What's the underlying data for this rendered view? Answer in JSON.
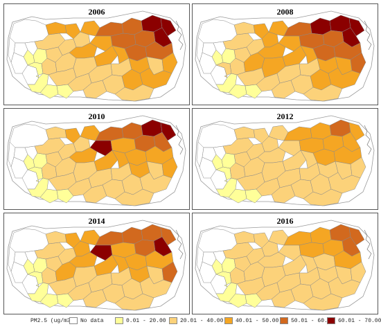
{
  "panels": [
    {
      "year": "2006",
      "levels": [
        0,
        0,
        0,
        0,
        0,
        0,
        1,
        1,
        1,
        1,
        1,
        2,
        2,
        3,
        3,
        2,
        2,
        3,
        4,
        4,
        5,
        5,
        5,
        2,
        2,
        3,
        3,
        4,
        4,
        2,
        2,
        3,
        3,
        4,
        4,
        1,
        2,
        2,
        2,
        3,
        2,
        3,
        2,
        2,
        3,
        3,
        2
      ]
    },
    {
      "year": "2008",
      "levels": [
        0,
        0,
        0,
        0,
        0,
        0,
        1,
        1,
        2,
        1,
        1,
        2,
        2,
        2,
        3,
        2,
        3,
        3,
        4,
        5,
        5,
        5,
        5,
        2,
        3,
        3,
        3,
        4,
        4,
        2,
        3,
        3,
        3,
        4,
        4,
        1,
        2,
        2,
        2,
        3,
        3,
        4,
        2,
        2,
        3,
        3,
        2
      ]
    },
    {
      "year": "2010",
      "levels": [
        0,
        0,
        0,
        0,
        0,
        0,
        1,
        1,
        1,
        1,
        1,
        2,
        2,
        2,
        3,
        2,
        2,
        3,
        4,
        4,
        5,
        5,
        4,
        2,
        2,
        3,
        5,
        3,
        4,
        2,
        2,
        3,
        3,
        3,
        3,
        1,
        2,
        2,
        2,
        3,
        2,
        3,
        2,
        2,
        2,
        2,
        2
      ]
    },
    {
      "year": "2012",
      "levels": [
        0,
        0,
        0,
        0,
        0,
        0,
        1,
        1,
        1,
        1,
        1,
        2,
        2,
        2,
        2,
        2,
        2,
        2,
        3,
        3,
        4,
        3,
        3,
        2,
        2,
        2,
        2,
        3,
        3,
        2,
        2,
        2,
        2,
        3,
        3,
        1,
        2,
        2,
        2,
        2,
        2,
        2,
        2,
        2,
        2,
        2,
        2
      ]
    },
    {
      "year": "2014",
      "levels": [
        0,
        0,
        0,
        0,
        0,
        0,
        1,
        1,
        1,
        1,
        1,
        2,
        2,
        2,
        3,
        2,
        3,
        3,
        4,
        4,
        4,
        4,
        5,
        2,
        3,
        3,
        5,
        3,
        4,
        2,
        2,
        3,
        3,
        3,
        3,
        1,
        2,
        2,
        2,
        3,
        2,
        4,
        2,
        2,
        2,
        2,
        2
      ]
    },
    {
      "year": "2016",
      "levels": [
        0,
        0,
        0,
        0,
        0,
        0,
        1,
        1,
        1,
        1,
        1,
        2,
        2,
        2,
        2,
        2,
        2,
        2,
        3,
        3,
        4,
        4,
        4,
        2,
        2,
        2,
        2,
        3,
        3,
        2,
        2,
        2,
        2,
        2,
        3,
        1,
        2,
        2,
        2,
        2,
        2,
        2,
        2,
        2,
        2,
        2,
        2
      ]
    }
  ],
  "legend": {
    "title": "PM2.5 (ug/m3)",
    "items": [
      {
        "label": "No data",
        "color": "#ffffff"
      },
      {
        "label": "0.01 - 20.00",
        "color": "#ffff99"
      },
      {
        "label": "20.01 - 40.00",
        "color": "#fcd27a"
      },
      {
        "label": "40.01 - 50.00",
        "color": "#f5a623"
      },
      {
        "label": "50.01 - 60.00",
        "color": "#d2691e"
      },
      {
        "label": "60.01 - 70.00",
        "color": "#8b0000"
      }
    ]
  },
  "colors": [
    "#ffffff",
    "#ffff99",
    "#fcd27a",
    "#f5a623",
    "#d2691e",
    "#8b0000"
  ]
}
